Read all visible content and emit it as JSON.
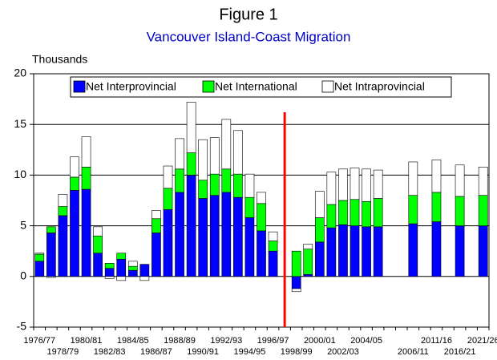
{
  "chart_data": {
    "type": "stacked_bar",
    "title": "Figure 1",
    "subtitle": "Vancouver Island-Coast Migration",
    "y_label": "Thousands",
    "categories": [
      "1976/77",
      null,
      "1978/79",
      null,
      "1980/81",
      null,
      "1982/83",
      null,
      "1984/85",
      null,
      "1986/87",
      null,
      "1988/89",
      null,
      "1990/91",
      null,
      "1992/93",
      null,
      "1994/95",
      null,
      "1996/97",
      null,
      "1998/99",
      null,
      "2000/01",
      null,
      "2002/03",
      null,
      "2004/05",
      null,
      null,
      null,
      "2006/11",
      null,
      "2011/16",
      null,
      "2016/21",
      null,
      "2021/26"
    ],
    "series": [
      {
        "name": "Net Interprovincial",
        "color": "#0000ff",
        "values": [
          1.5,
          4.3,
          6.0,
          8.5,
          8.6,
          2.3,
          0.8,
          1.7,
          0.6,
          1.2,
          4.3,
          6.6,
          8.3,
          10.0,
          7.7,
          8.0,
          8.3,
          7.8,
          5.8,
          4.5,
          2.5,
          null,
          -1.2,
          0.2,
          3.4,
          4.8,
          5.1,
          5.0,
          4.9,
          4.9,
          null,
          null,
          5.2,
          null,
          5.4,
          null,
          5.0,
          null,
          5.0
        ]
      },
      {
        "name": "Net International",
        "color": "#00ff00",
        "values": [
          0.7,
          0.6,
          0.9,
          1.3,
          2.2,
          1.7,
          0.5,
          0.6,
          0.4,
          0.0,
          1.4,
          2.1,
          2.3,
          2.2,
          1.8,
          2.1,
          2.3,
          2.3,
          2.0,
          2.7,
          1.0,
          null,
          2.5,
          2.5,
          2.4,
          2.3,
          2.4,
          2.6,
          2.5,
          2.8,
          null,
          null,
          2.8,
          null,
          2.9,
          null,
          2.9,
          null,
          3.0
        ]
      },
      {
        "name": "Net Intraprovincial",
        "color": "#ffffff",
        "values": [
          0.1,
          -0.1,
          1.2,
          2.0,
          3.0,
          0.9,
          -0.2,
          -0.4,
          0.5,
          -0.4,
          0.8,
          2.2,
          3.0,
          5.0,
          4.0,
          3.6,
          4.9,
          4.3,
          2.3,
          1.1,
          0.9,
          null,
          -0.3,
          0.5,
          2.6,
          3.2,
          3.1,
          3.1,
          3.2,
          2.8,
          null,
          null,
          3.3,
          null,
          3.2,
          null,
          3.1,
          null,
          2.8
        ]
      }
    ],
    "ylim": [
      -5,
      20
    ],
    "yticks": [
      -5,
      0,
      5,
      10,
      15,
      20
    ],
    "grid": true
  }
}
